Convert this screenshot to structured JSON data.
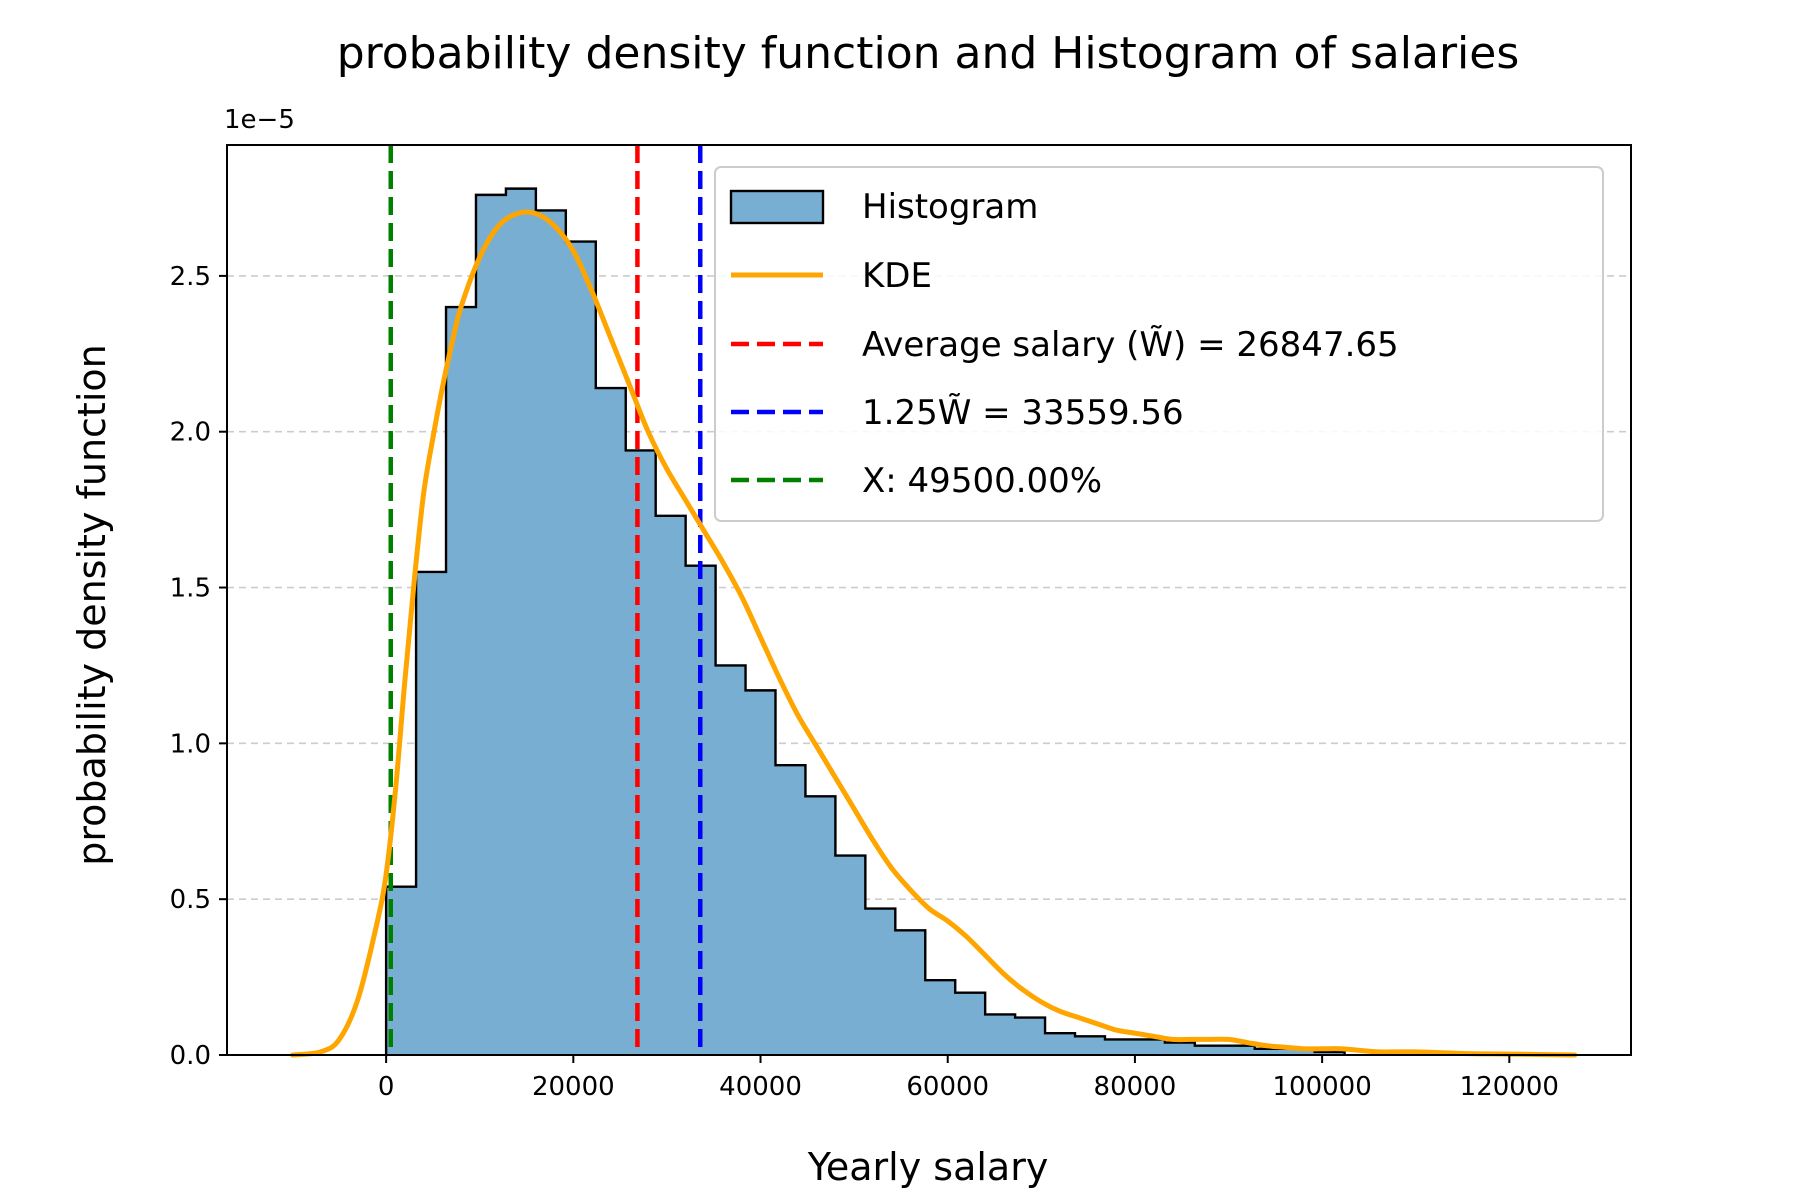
{
  "chart_data": {
    "type": "bar",
    "title": "probability density function and Histogram of salaries",
    "xlabel": "Yearly salary",
    "ylabel": "probability density function",
    "y_offset_label": "1e−5",
    "xlim": [
      -17000,
      133000
    ],
    "ylim": [
      0,
      2.92
    ],
    "x_ticks": [
      0,
      20000,
      40000,
      60000,
      80000,
      100000,
      120000
    ],
    "x_tick_labels": [
      "0",
      "20000",
      "40000",
      "60000",
      "80000",
      "100000",
      "120000"
    ],
    "y_ticks": [
      0,
      0.5,
      1.0,
      1.5,
      2.0,
      2.5
    ],
    "y_tick_labels": [
      "0.0",
      "0.5",
      "1.0",
      "1.5",
      "2.0",
      "2.5"
    ],
    "grid": "y-dashed",
    "legend_position": "top-right",
    "colors": {
      "histogram_fill": "#79aed3",
      "histogram_edge": "#000000",
      "kde": "#ffa500",
      "average": "#ff0000",
      "threshold": "#0000ff",
      "x_marker": "#008000",
      "grid": "#cccccc"
    },
    "histogram": {
      "name": "Histogram",
      "bin_edges": [
        0,
        3200,
        6400,
        9600,
        12800,
        16000,
        19200,
        22400,
        25600,
        28800,
        32000,
        35200,
        38400,
        41600,
        44800,
        48000,
        51200,
        54400,
        57600,
        60800,
        64000,
        67200,
        70400,
        73600,
        76800,
        80000,
        83200,
        86400,
        89600,
        92800,
        96000,
        99200,
        102400
      ],
      "values": [
        0.54,
        1.55,
        2.4,
        2.76,
        2.78,
        2.71,
        2.61,
        2.14,
        1.94,
        1.73,
        1.57,
        1.25,
        1.17,
        0.93,
        0.83,
        0.64,
        0.47,
        0.4,
        0.24,
        0.2,
        0.13,
        0.12,
        0.07,
        0.06,
        0.05,
        0.05,
        0.04,
        0.03,
        0.03,
        0.02,
        0.02,
        0.01
      ]
    },
    "kde": {
      "name": "KDE",
      "x": [
        -10000,
        -7000,
        -5000,
        -3000,
        -1000,
        0,
        1000,
        2000,
        3000,
        4000,
        5000,
        6000,
        7000,
        8000,
        10000,
        12000,
        14000,
        16000,
        18000,
        20000,
        22000,
        24000,
        26000,
        28000,
        30000,
        32000,
        34000,
        36000,
        38000,
        40000,
        42000,
        44000,
        46000,
        48000,
        50000,
        52000,
        54000,
        56000,
        58000,
        60000,
        62000,
        64000,
        66000,
        68000,
        70000,
        72000,
        74000,
        76000,
        78000,
        80000,
        82000,
        84000,
        86000,
        88000,
        90000,
        92000,
        94000,
        96000,
        98000,
        100000,
        102000,
        104000,
        106000,
        110000,
        115000,
        120000,
        127000
      ],
      "y": [
        0.0,
        0.01,
        0.05,
        0.18,
        0.42,
        0.58,
        0.85,
        1.2,
        1.52,
        1.8,
        1.98,
        2.14,
        2.28,
        2.4,
        2.56,
        2.66,
        2.7,
        2.7,
        2.66,
        2.58,
        2.45,
        2.3,
        2.15,
        2.0,
        1.88,
        1.78,
        1.68,
        1.58,
        1.47,
        1.34,
        1.21,
        1.09,
        0.99,
        0.89,
        0.79,
        0.69,
        0.6,
        0.53,
        0.47,
        0.43,
        0.38,
        0.32,
        0.26,
        0.21,
        0.17,
        0.14,
        0.12,
        0.1,
        0.08,
        0.07,
        0.06,
        0.05,
        0.05,
        0.05,
        0.05,
        0.04,
        0.03,
        0.025,
        0.02,
        0.02,
        0.02,
        0.015,
        0.01,
        0.01,
        0.005,
        0.003,
        0.0
      ]
    },
    "vlines": [
      {
        "name": "Average salary (W̃) = 26847.65",
        "x": 26847.65,
        "color": "#ff0000"
      },
      {
        "name": "1.25W̃ = 33559.56",
        "x": 33559.56,
        "color": "#0000ff"
      },
      {
        "name": "X: 49500.00%",
        "x": 495,
        "color": "#008000"
      }
    ]
  }
}
